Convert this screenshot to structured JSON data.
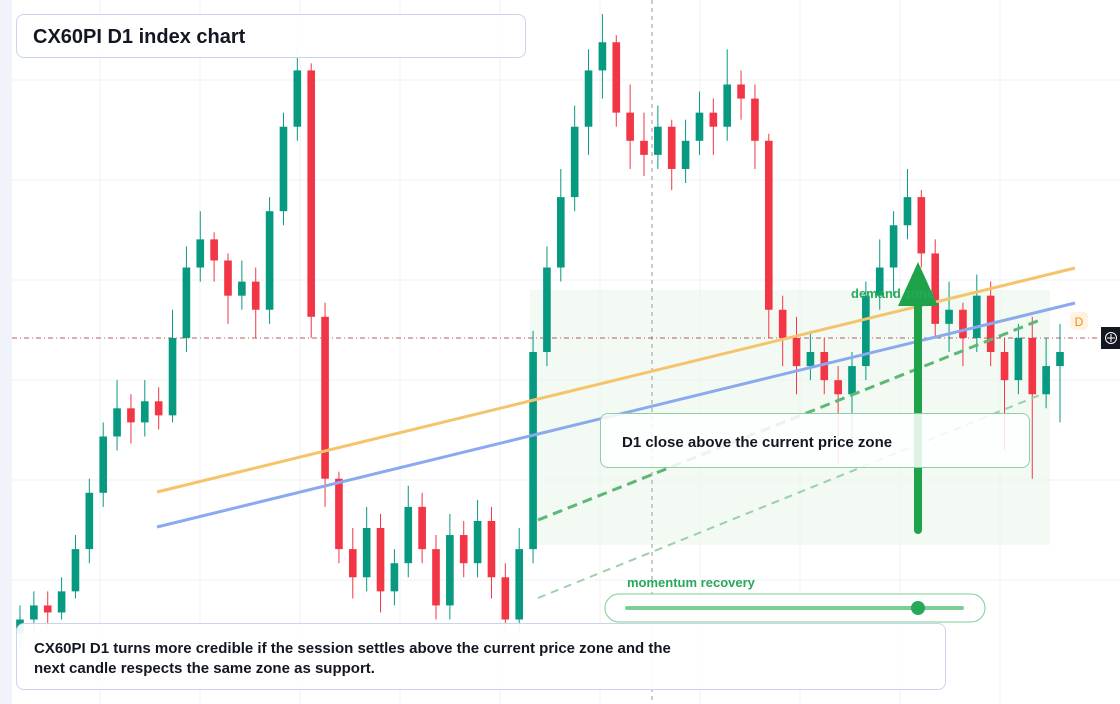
{
  "chart_data": {
    "type": "candlestick",
    "title": "CX60PI D1 index chart",
    "ylim": [
      0,
      100
    ],
    "up_color": "#089981",
    "down_color": "#f23645",
    "ohlc": [
      [
        10,
        14,
        8,
        12
      ],
      [
        12,
        16,
        10,
        14
      ],
      [
        14,
        16,
        11,
        13
      ],
      [
        13,
        18,
        12,
        16
      ],
      [
        16,
        24,
        15,
        22
      ],
      [
        22,
        32,
        20,
        30
      ],
      [
        30,
        40,
        28,
        38
      ],
      [
        38,
        46,
        36,
        42
      ],
      [
        42,
        44,
        37,
        40
      ],
      [
        40,
        46,
        38,
        43
      ],
      [
        43,
        45,
        39,
        41
      ],
      [
        41,
        56,
        40,
        52
      ],
      [
        52,
        65,
        50,
        62
      ],
      [
        62,
        70,
        60,
        66
      ],
      [
        66,
        67,
        60,
        63
      ],
      [
        63,
        64,
        54,
        58
      ],
      [
        58,
        63,
        56,
        60
      ],
      [
        60,
        62,
        52,
        56
      ],
      [
        56,
        72,
        54,
        70
      ],
      [
        70,
        84,
        68,
        82
      ],
      [
        82,
        93,
        80,
        90
      ],
      [
        90,
        91,
        52,
        55
      ],
      [
        55,
        57,
        28,
        32
      ],
      [
        32,
        33,
        20,
        22
      ],
      [
        22,
        25,
        15,
        18
      ],
      [
        18,
        28,
        16,
        25
      ],
      [
        25,
        27,
        13,
        16
      ],
      [
        16,
        22,
        14,
        20
      ],
      [
        20,
        31,
        18,
        28
      ],
      [
        28,
        30,
        20,
        22
      ],
      [
        22,
        24,
        12,
        14
      ],
      [
        14,
        27,
        12,
        24
      ],
      [
        24,
        26,
        18,
        20
      ],
      [
        20,
        29,
        18,
        26
      ],
      [
        26,
        28,
        15,
        18
      ],
      [
        18,
        20,
        10,
        12
      ],
      [
        12,
        25,
        10,
        22
      ],
      [
        22,
        53,
        20,
        50
      ],
      [
        50,
        65,
        48,
        62
      ],
      [
        62,
        76,
        60,
        72
      ],
      [
        72,
        85,
        70,
        82
      ],
      [
        82,
        93,
        78,
        90
      ],
      [
        90,
        98,
        86,
        94
      ],
      [
        94,
        95,
        82,
        84
      ],
      [
        84,
        88,
        76,
        80
      ],
      [
        80,
        84,
        75,
        78
      ],
      [
        78,
        85,
        76,
        82
      ],
      [
        82,
        83,
        73,
        76
      ],
      [
        76,
        83,
        74,
        80
      ],
      [
        80,
        87,
        78,
        84
      ],
      [
        84,
        86,
        78,
        82
      ],
      [
        82,
        93,
        80,
        88
      ],
      [
        88,
        90,
        83,
        86
      ],
      [
        86,
        88,
        76,
        80
      ],
      [
        80,
        81,
        52,
        56
      ],
      [
        56,
        58,
        48,
        52
      ],
      [
        52,
        55,
        44,
        48
      ],
      [
        48,
        53,
        46,
        50
      ],
      [
        50,
        52,
        44,
        46
      ],
      [
        46,
        48,
        34,
        44
      ],
      [
        44,
        50,
        36,
        48
      ],
      [
        48,
        60,
        46,
        58
      ],
      [
        58,
        66,
        56,
        62
      ],
      [
        62,
        70,
        58,
        68
      ],
      [
        68,
        76,
        66,
        72
      ],
      [
        72,
        73,
        62,
        64
      ],
      [
        64,
        66,
        52,
        54
      ],
      [
        54,
        60,
        50,
        56
      ],
      [
        56,
        57,
        48,
        52
      ],
      [
        52,
        61,
        50,
        58
      ],
      [
        58,
        60,
        48,
        50
      ],
      [
        50,
        52,
        36,
        46
      ],
      [
        46,
        54,
        44,
        52
      ],
      [
        52,
        55,
        32,
        44
      ],
      [
        44,
        52,
        42,
        48
      ],
      [
        48,
        54,
        40,
        50
      ]
    ],
    "marker": "D",
    "zone_label": "demand zone",
    "callout": "D1 close above the current price zone",
    "slider_label": "momentum recovery",
    "note": "CX60PI D1 turns more credible if the session settles above the current price zone and the next candle respects the same zone as support."
  }
}
